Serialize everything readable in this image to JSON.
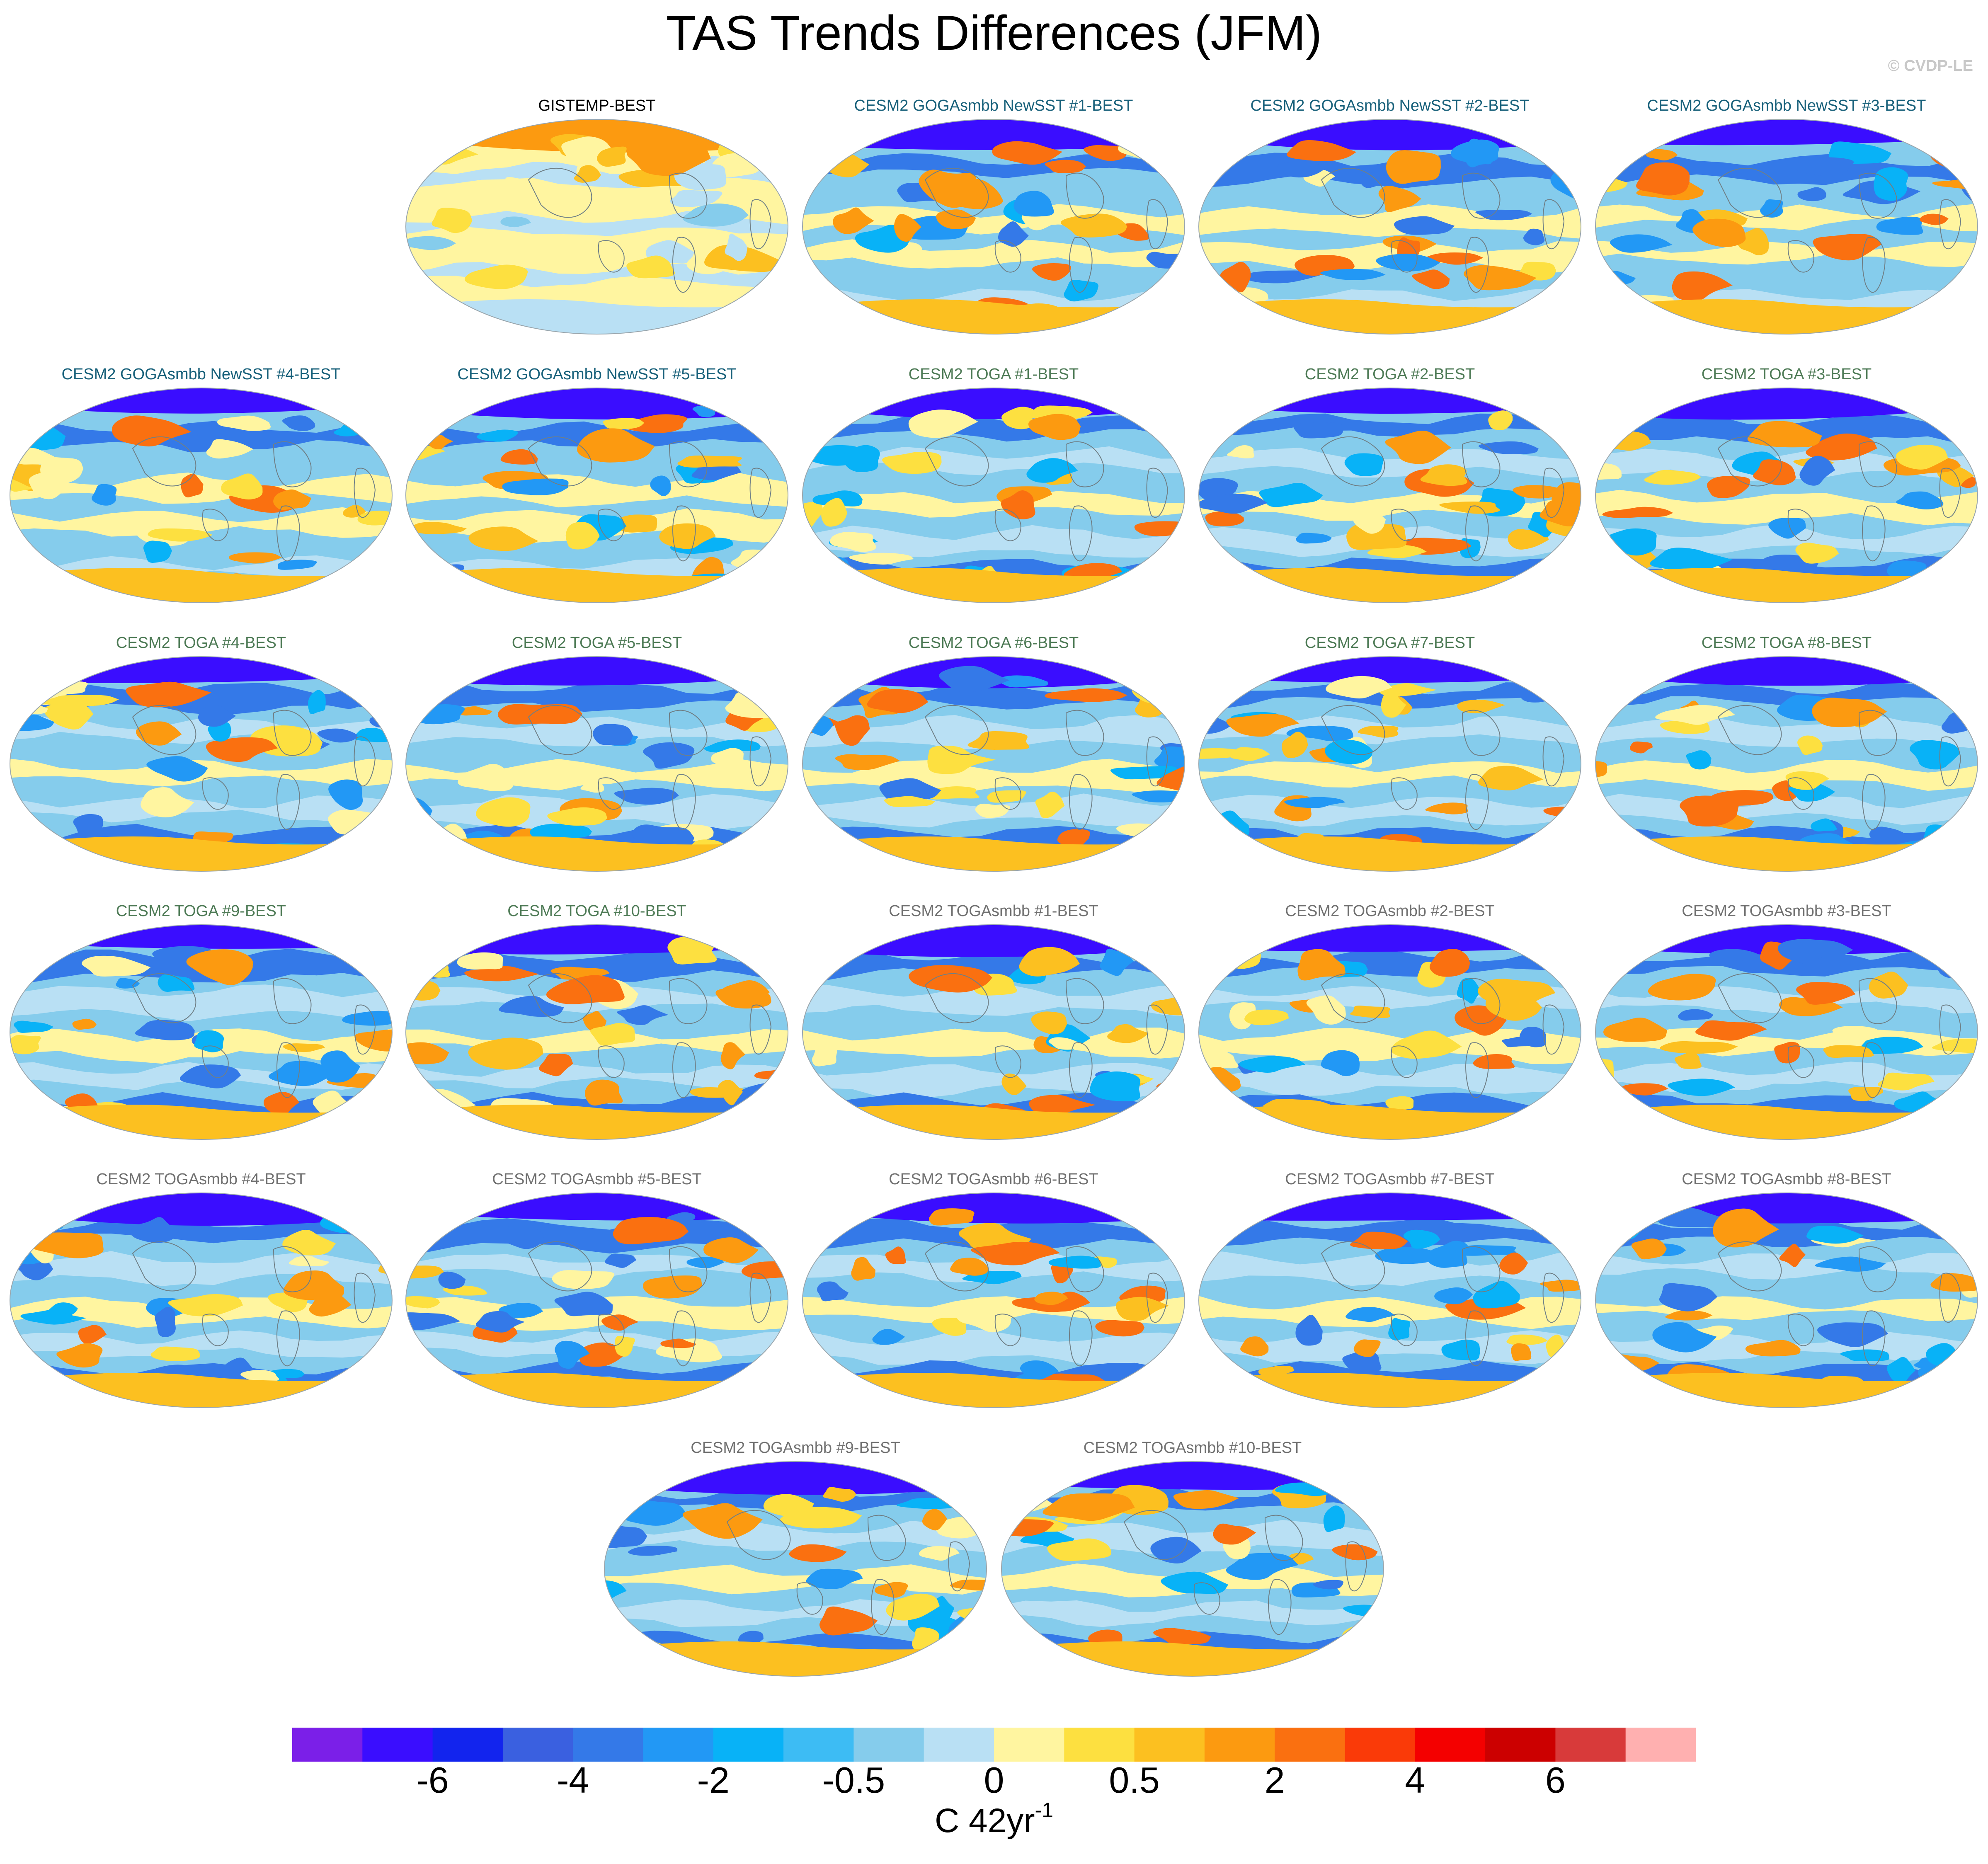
{
  "header": {
    "title": "TAS Trends Differences (JFM)",
    "copyright": "© CVDP-LE"
  },
  "panels": [
    {
      "title": "GISTEMP-BEST",
      "group": "obs"
    },
    {
      "title": "CESM2 GOGAsmbb NewSST #1-BEST",
      "group": "goga"
    },
    {
      "title": "CESM2 GOGAsmbb NewSST #2-BEST",
      "group": "goga"
    },
    {
      "title": "CESM2 GOGAsmbb NewSST #3-BEST",
      "group": "goga"
    },
    {
      "title": "CESM2 GOGAsmbb NewSST #4-BEST",
      "group": "goga"
    },
    {
      "title": "CESM2 GOGAsmbb NewSST #5-BEST",
      "group": "goga"
    },
    {
      "title": "CESM2 TOGA #1-BEST",
      "group": "toga"
    },
    {
      "title": "CESM2 TOGA #2-BEST",
      "group": "toga"
    },
    {
      "title": "CESM2 TOGA #3-BEST",
      "group": "toga"
    },
    {
      "title": "CESM2 TOGA #4-BEST",
      "group": "toga"
    },
    {
      "title": "CESM2 TOGA #5-BEST",
      "group": "toga"
    },
    {
      "title": "CESM2 TOGA #6-BEST",
      "group": "toga"
    },
    {
      "title": "CESM2 TOGA #7-BEST",
      "group": "toga"
    },
    {
      "title": "CESM2 TOGA #8-BEST",
      "group": "toga"
    },
    {
      "title": "CESM2 TOGA #9-BEST",
      "group": "toga"
    },
    {
      "title": "CESM2 TOGA #10-BEST",
      "group": "toga"
    },
    {
      "title": "CESM2 TOGAsmbb #1-BEST",
      "group": "togasmbb"
    },
    {
      "title": "CESM2 TOGAsmbb #2-BEST",
      "group": "togasmbb"
    },
    {
      "title": "CESM2 TOGAsmbb #3-BEST",
      "group": "togasmbb"
    },
    {
      "title": "CESM2 TOGAsmbb #4-BEST",
      "group": "togasmbb"
    },
    {
      "title": "CESM2 TOGAsmbb #5-BEST",
      "group": "togasmbb"
    },
    {
      "title": "CESM2 TOGAsmbb #6-BEST",
      "group": "togasmbb"
    },
    {
      "title": "CESM2 TOGAsmbb #7-BEST",
      "group": "togasmbb"
    },
    {
      "title": "CESM2 TOGAsmbb #8-BEST",
      "group": "togasmbb"
    },
    {
      "title": "CESM2 TOGAsmbb #9-BEST",
      "group": "togasmbb"
    },
    {
      "title": "CESM2 TOGAsmbb #10-BEST",
      "group": "togasmbb"
    }
  ],
  "colorbar": {
    "colors": [
      "#7b1fe8",
      "#3a0dff",
      "#1224ee",
      "#3a60e0",
      "#3479e8",
      "#2298f5",
      "#08b2f7",
      "#3dbcf4",
      "#85ccec",
      "#b9e0f4",
      "#fff5a0",
      "#fde040",
      "#fcc020",
      "#fc9a10",
      "#fa7010",
      "#fa3a08",
      "#f40000",
      "#cc0000",
      "#d83a3a",
      "#ffb0b0"
    ],
    "tick_labels": [
      "-6",
      "-4",
      "-2",
      "-0.5",
      "0",
      "0.5",
      "2",
      "4",
      "6"
    ],
    "units": "C 42yr",
    "units_exponent": "-1"
  },
  "legend_colors": {
    "ocean_background": "#85ccec",
    "cool_band": "#3479e8",
    "neutral_band": "#b9e0f4",
    "warm_band": "#fff5a0",
    "pole_cold": "#3a0dff",
    "warm_patch": "#fc9a10",
    "land_outline": "#6f7f86"
  }
}
